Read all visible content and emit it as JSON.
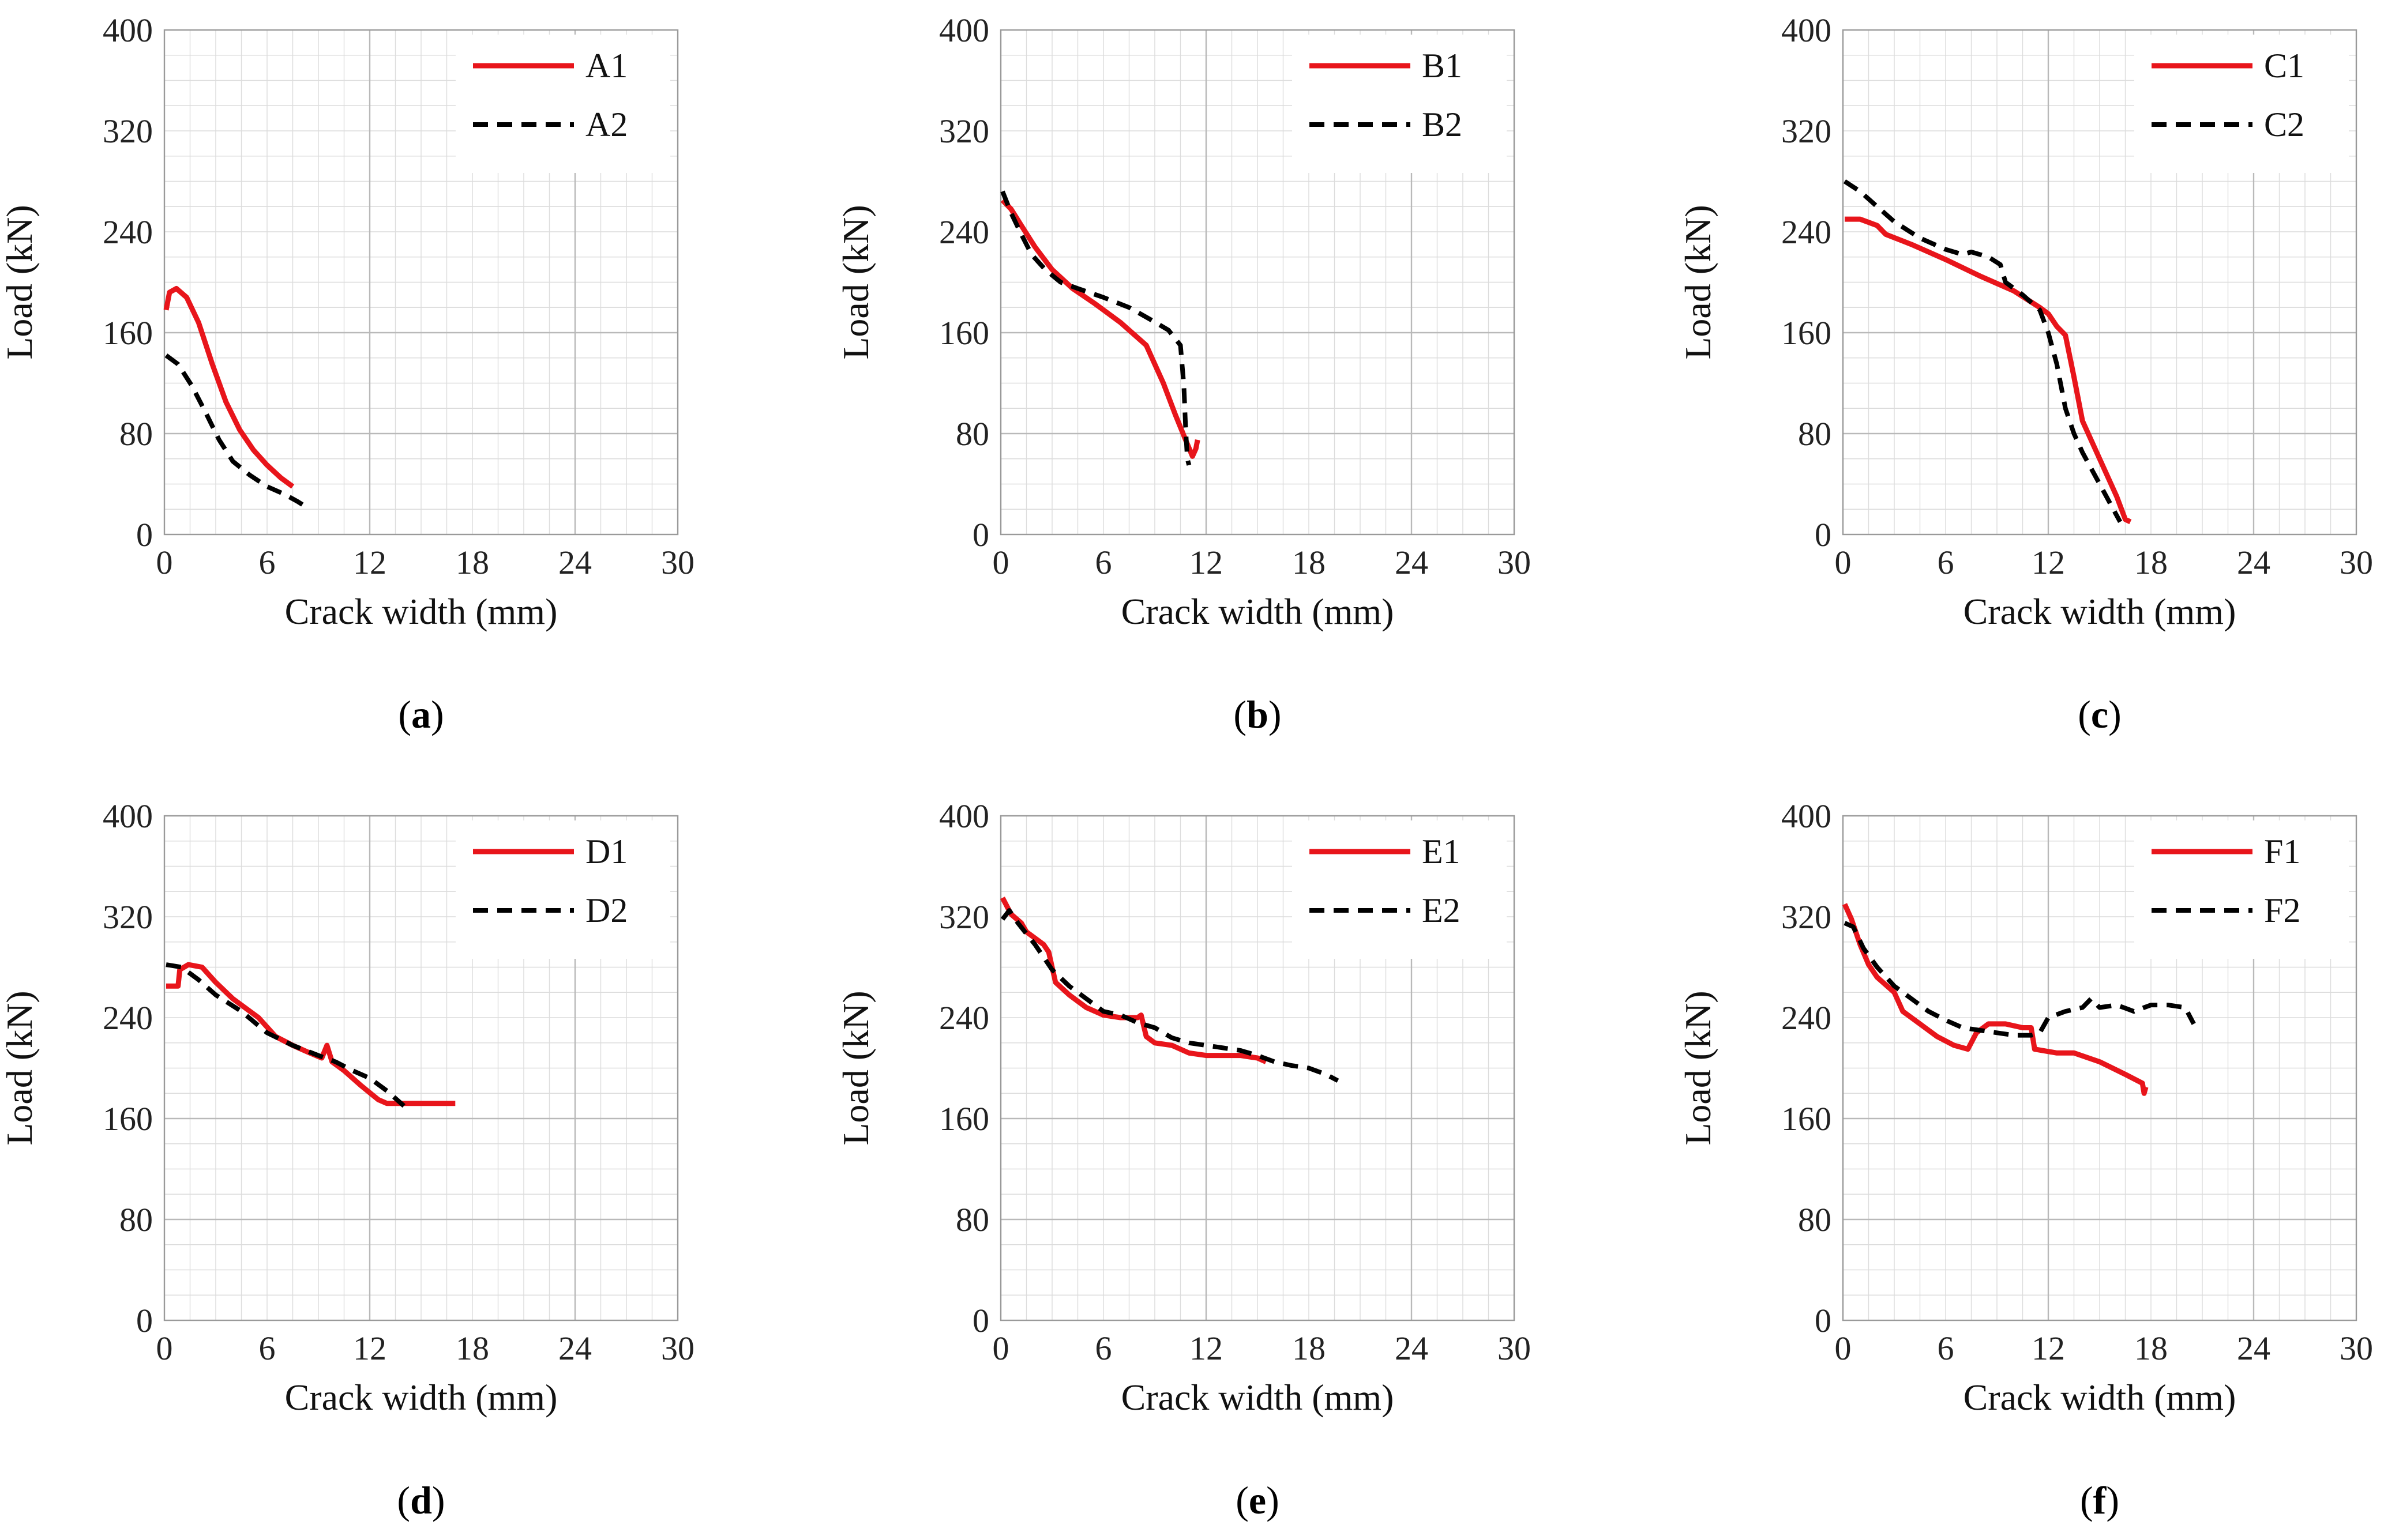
{
  "colors": {
    "series1": "#e8151b",
    "series2": "#000000",
    "grid": "#dcdcdc",
    "background": "#ffffff"
  },
  "chart_data": [
    {
      "panel_label": "a",
      "type": "line",
      "xlabel": "Crack width (mm)",
      "ylabel": "Load (kN)",
      "xlim": [
        0,
        30
      ],
      "ylim": [
        0,
        400
      ],
      "xticks": [
        "0",
        "6",
        "12",
        "18",
        "24",
        "30"
      ],
      "yticks": [
        "0",
        "80",
        "160",
        "240",
        "320",
        "400"
      ],
      "grid": true,
      "legend": "top-right",
      "series": [
        {
          "name": "A1",
          "style": "solid",
          "x": [
            0.1,
            0.3,
            0.7,
            1.3,
            2.0,
            2.8,
            3.6,
            4.4,
            5.2,
            6.0,
            6.8,
            7.5
          ],
          "y": [
            178,
            192,
            195,
            188,
            168,
            135,
            105,
            83,
            67,
            55,
            45,
            38
          ]
        },
        {
          "name": "A2",
          "style": "dashed",
          "x": [
            0.1,
            0.8,
            1.6,
            2.4,
            3.2,
            4.0,
            5.0,
            6.0,
            7.0,
            7.8,
            8.5
          ],
          "y": [
            142,
            135,
            118,
            97,
            75,
            58,
            47,
            38,
            32,
            26,
            20
          ]
        }
      ]
    },
    {
      "panel_label": "b",
      "type": "line",
      "xlabel": "Crack width (mm)",
      "ylabel": "Load (kN)",
      "xlim": [
        0,
        30
      ],
      "ylim": [
        0,
        400
      ],
      "xticks": [
        "0",
        "6",
        "12",
        "18",
        "24",
        "30"
      ],
      "yticks": [
        "0",
        "80",
        "160",
        "240",
        "320",
        "400"
      ],
      "grid": true,
      "legend": "top-right",
      "series": [
        {
          "name": "B1",
          "style": "solid",
          "x": [
            0.1,
            0.6,
            1.2,
            2.0,
            3.0,
            4.2,
            5.5,
            7.0,
            8.5,
            9.5,
            10.2,
            10.8,
            11.2,
            11.4,
            11.5
          ],
          "y": [
            265,
            258,
            245,
            228,
            210,
            195,
            183,
            168,
            150,
            120,
            95,
            75,
            62,
            68,
            75
          ]
        },
        {
          "name": "B2",
          "style": "dashed",
          "x": [
            0.1,
            0.6,
            1.2,
            1.8,
            2.6,
            3.5,
            4.5,
            6.0,
            7.5,
            8.8,
            9.8,
            10.5,
            10.7,
            10.8,
            10.9,
            11.0
          ],
          "y": [
            272,
            255,
            238,
            222,
            210,
            200,
            195,
            188,
            180,
            170,
            162,
            150,
            118,
            85,
            60,
            55
          ]
        }
      ]
    },
    {
      "panel_label": "c",
      "type": "line",
      "xlabel": "Crack width (mm)",
      "ylabel": "Load (kN)",
      "xlim": [
        0,
        30
      ],
      "ylim": [
        0,
        400
      ],
      "xticks": [
        "0",
        "6",
        "12",
        "18",
        "24",
        "30"
      ],
      "yticks": [
        "0",
        "80",
        "160",
        "240",
        "320",
        "400"
      ],
      "grid": true,
      "legend": "top-right",
      "series": [
        {
          "name": "C1",
          "style": "solid",
          "x": [
            0.1,
            1.0,
            2.0,
            2.5,
            4.0,
            6.0,
            8.0,
            10.0,
            11.5,
            12.0,
            12.5,
            13.0,
            13.5,
            14.0,
            15.0,
            16.0,
            16.5,
            16.8
          ],
          "y": [
            250,
            250,
            245,
            238,
            230,
            218,
            205,
            193,
            180,
            175,
            165,
            158,
            125,
            90,
            60,
            30,
            12,
            10
          ]
        },
        {
          "name": "C2",
          "style": "dashed",
          "x": [
            0.1,
            1.0,
            2.0,
            3.0,
            4.5,
            6.0,
            7.0,
            7.5,
            8.5,
            9.2,
            9.5,
            10.5,
            11.5,
            12.0,
            12.5,
            13.0,
            13.5,
            14.0,
            15.0,
            15.8,
            16.2
          ],
          "y": [
            280,
            272,
            260,
            248,
            235,
            226,
            222,
            224,
            220,
            214,
            200,
            190,
            178,
            160,
            135,
            100,
            80,
            65,
            40,
            20,
            10
          ]
        }
      ]
    },
    {
      "panel_label": "d",
      "type": "line",
      "xlabel": "Crack width (mm)",
      "ylabel": "Load (kN)",
      "xlim": [
        0,
        30
      ],
      "ylim": [
        0,
        400
      ],
      "xticks": [
        "0",
        "6",
        "12",
        "18",
        "24",
        "30"
      ],
      "yticks": [
        "0",
        "80",
        "160",
        "240",
        "320",
        "400"
      ],
      "grid": true,
      "legend": "top-right",
      "series": [
        {
          "name": "D1",
          "style": "solid",
          "x": [
            0.1,
            0.8,
            0.9,
            1.4,
            2.2,
            3.0,
            4.0,
            5.5,
            6.5,
            7.5,
            8.5,
            9.2,
            9.5,
            9.8,
            10.5,
            11.5,
            12.5,
            13.0,
            14.0,
            15.0,
            16.0,
            17.0
          ],
          "y": [
            265,
            265,
            278,
            282,
            280,
            268,
            255,
            240,
            225,
            218,
            212,
            208,
            218,
            205,
            198,
            186,
            175,
            172,
            172,
            172,
            172,
            172
          ]
        },
        {
          "name": "D2",
          "style": "dashed",
          "x": [
            0.1,
            1.0,
            2.0,
            3.0,
            4.5,
            6.0,
            7.5,
            9.0,
            10.0,
            11.0,
            12.0,
            13.0,
            14.0
          ],
          "y": [
            282,
            280,
            270,
            258,
            245,
            228,
            218,
            210,
            205,
            198,
            192,
            182,
            170
          ]
        }
      ]
    },
    {
      "panel_label": "e",
      "type": "line",
      "xlabel": "Crack width (mm)",
      "ylabel": "Load (kN)",
      "xlim": [
        0,
        30
      ],
      "ylim": [
        0,
        400
      ],
      "xticks": [
        "0",
        "6",
        "12",
        "18",
        "24",
        "30"
      ],
      "yticks": [
        "0",
        "80",
        "160",
        "240",
        "320",
        "400"
      ],
      "grid": true,
      "legend": "top-right",
      "series": [
        {
          "name": "E1",
          "style": "solid",
          "x": [
            0.1,
            0.6,
            1.2,
            1.5,
            2.5,
            2.8,
            3.2,
            4.0,
            5.0,
            6.0,
            7.0,
            8.0,
            8.2,
            8.5,
            9.0,
            10.0,
            11.0,
            12.0,
            13.0,
            14.0,
            15.0,
            15.5
          ],
          "y": [
            335,
            322,
            315,
            308,
            298,
            292,
            268,
            258,
            248,
            242,
            240,
            240,
            242,
            225,
            220,
            218,
            212,
            210,
            210,
            210,
            208,
            205
          ]
        },
        {
          "name": "E2",
          "style": "dashed",
          "x": [
            0.1,
            0.5,
            1.0,
            2.0,
            3.0,
            4.0,
            5.0,
            6.0,
            7.0,
            8.0,
            9.0,
            10.0,
            11.0,
            12.0,
            13.0,
            14.0,
            15.0,
            16.0,
            17.0,
            18.0,
            19.0,
            19.7
          ],
          "y": [
            318,
            325,
            315,
            298,
            278,
            265,
            255,
            245,
            242,
            236,
            232,
            224,
            220,
            218,
            216,
            214,
            210,
            205,
            202,
            200,
            195,
            190
          ]
        }
      ]
    },
    {
      "panel_label": "f",
      "type": "line",
      "xlabel": "Crack width (mm)",
      "ylabel": "Load (kN)",
      "xlim": [
        0,
        30
      ],
      "ylim": [
        0,
        400
      ],
      "xticks": [
        "0",
        "6",
        "12",
        "18",
        "24",
        "30"
      ],
      "yticks": [
        "0",
        "80",
        "160",
        "240",
        "320",
        "400"
      ],
      "grid": true,
      "legend": "top-right",
      "series": [
        {
          "name": "F1",
          "style": "solid",
          "x": [
            0.1,
            0.5,
            1.0,
            1.5,
            2.0,
            3.0,
            3.5,
            4.5,
            5.5,
            6.5,
            7.3,
            7.8,
            8.5,
            9.5,
            10.5,
            11.0,
            11.2,
            12.5,
            13.5,
            15.0,
            16.5,
            17.5,
            17.6,
            17.7
          ],
          "y": [
            330,
            318,
            298,
            282,
            272,
            260,
            245,
            235,
            225,
            218,
            215,
            228,
            235,
            235,
            232,
            232,
            215,
            212,
            212,
            205,
            195,
            188,
            180,
            185
          ]
        },
        {
          "name": "F2",
          "style": "dashed",
          "x": [
            0.1,
            0.6,
            1.2,
            2.0,
            3.0,
            4.0,
            5.0,
            6.0,
            7.0,
            8.0,
            9.0,
            10.0,
            11.0,
            11.5,
            12.0,
            13.0,
            14.0,
            14.5,
            15.0,
            16.0,
            17.0,
            18.0,
            19.0,
            20.0,
            20.5
          ],
          "y": [
            315,
            312,
            295,
            280,
            265,
            255,
            245,
            238,
            232,
            230,
            228,
            226,
            226,
            228,
            240,
            245,
            248,
            255,
            248,
            250,
            245,
            250,
            250,
            248,
            235
          ]
        }
      ]
    }
  ]
}
